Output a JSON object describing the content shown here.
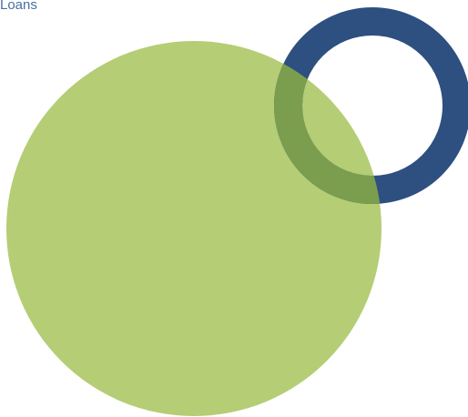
{
  "diagram": {
    "label": "Loans",
    "colors": {
      "label": "#4a6fa0",
      "big_circle": "#b5cd75",
      "ring": "#2e5080",
      "overlap": "#7a9e4e"
    }
  }
}
